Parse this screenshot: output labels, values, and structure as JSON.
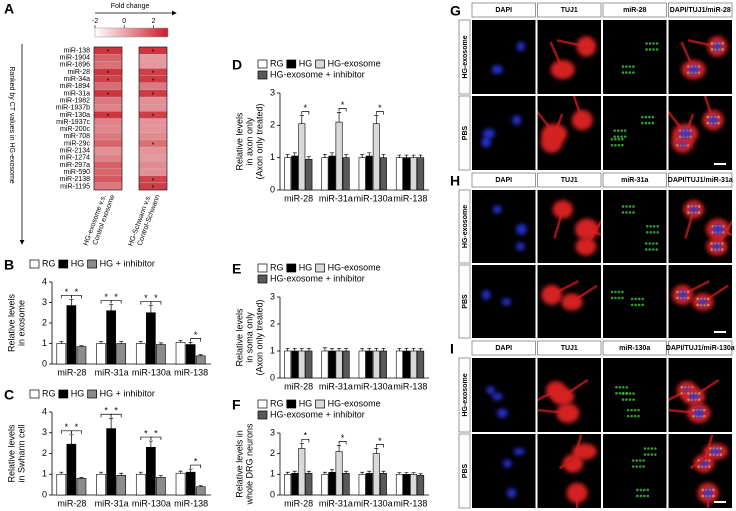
{
  "chart_data": [
    {
      "type": "heatmap",
      "panel": "A",
      "colorbar_label": "Fold change",
      "ylabel": "Ranked by CT values in HG-exosome",
      "categories": [
        "miR-138",
        "miR-1904",
        "miR-1896",
        "miR-28",
        "miR-34a",
        "miR-1894",
        "miR-31a",
        "miR-1982",
        "miR-1937b",
        "miR-130a",
        "miR-1937c",
        "miR-200c",
        "miR-708",
        "miR-29c",
        "miR-2134",
        "miR-1274",
        "miR-297a",
        "miR-590",
        "miR-2138",
        "miR-1195"
      ],
      "xlabels": [
        [
          "HG-exosome v.s.",
          "Control exosome"
        ],
        [
          "HG-Schwann v.s.",
          "Control-Schwann"
        ]
      ],
      "series": [
        {
          "values": [
            2.5,
            1.5,
            1.2,
            2.5,
            2.2,
            1.3,
            2.5,
            1.0,
            0.8,
            2.5,
            0.8,
            0.7,
            1.0,
            1.5,
            0.5,
            0.8,
            1.6,
            1.4,
            1.7,
            1.0
          ],
          "stars": [
            "*",
            null,
            null,
            "*",
            "*",
            null,
            "*",
            null,
            null,
            "*",
            null,
            null,
            null,
            null,
            null,
            null,
            null,
            null,
            null,
            null
          ]
        },
        {
          "values": [
            2.5,
            0.3,
            0.3,
            2.3,
            2.4,
            1.0,
            2.4,
            0.5,
            0.5,
            2.3,
            0.4,
            0.4,
            0.6,
            1.2,
            0.4,
            0.3,
            0.6,
            0.5,
            2.2,
            2.3
          ],
          "stars": [
            "*",
            null,
            null,
            "*",
            "*",
            null,
            "*",
            null,
            null,
            "*",
            null,
            null,
            null,
            "*",
            null,
            null,
            null,
            null,
            "*",
            "*"
          ]
        }
      ],
      "clim": [
        -2,
        3
      ],
      "cticks": [
        -2,
        0,
        2
      ],
      "colors": [
        "#ffffff",
        "#c81e2a"
      ]
    },
    {
      "type": "bar",
      "panel": "B",
      "ylabel": [
        "Relative levels",
        "in exosome"
      ],
      "categories": [
        "miR-28",
        "miR-31a",
        "miR-130a",
        "miR-138"
      ],
      "ylim": [
        0,
        4
      ],
      "yticks": [
        0,
        1,
        2,
        3,
        4
      ],
      "series": [
        {
          "name": "RG",
          "color": "#ffffff",
          "values": [
            1.0,
            1.0,
            1.0,
            1.05
          ],
          "errors": [
            0.1,
            0.1,
            0.1,
            0.1
          ]
        },
        {
          "name": "HG",
          "color": "#000000",
          "values": [
            2.85,
            2.6,
            2.5,
            0.95
          ],
          "errors": [
            0.3,
            0.3,
            0.35,
            0.1
          ]
        },
        {
          "name": "HG + inhibitor",
          "color": "#8c8c8c",
          "values": [
            0.85,
            1.0,
            0.95,
            0.4
          ],
          "errors": [
            0.05,
            0.1,
            0.08,
            0.05
          ]
        }
      ],
      "annotations": [
        {
          "text": "*",
          "category": "miR-28",
          "between": [
            "RG",
            "HG"
          ]
        },
        {
          "text": "*",
          "category": "miR-28",
          "between": [
            "HG",
            "HG + inhibitor"
          ]
        },
        {
          "text": "*",
          "category": "miR-31a",
          "between": [
            "RG",
            "HG"
          ]
        },
        {
          "text": "*",
          "category": "miR-31a",
          "between": [
            "HG",
            "HG + inhibitor"
          ]
        },
        {
          "text": "*",
          "category": "miR-130a",
          "between": [
            "RG",
            "HG"
          ]
        },
        {
          "text": "*",
          "category": "miR-130a",
          "between": [
            "HG",
            "HG + inhibitor"
          ]
        },
        {
          "text": "*",
          "category": "miR-138",
          "between": [
            "HG",
            "HG + inhibitor"
          ]
        }
      ]
    },
    {
      "type": "bar",
      "panel": "C",
      "ylabel": [
        "Relative levels",
        "in Swhann cell"
      ],
      "categories": [
        "miR-28",
        "miR-31a",
        "miR-130a",
        "miR-138"
      ],
      "ylim": [
        0,
        4
      ],
      "yticks": [
        0,
        1,
        2,
        3,
        4
      ],
      "series": [
        {
          "name": "RG",
          "color": "#ffffff",
          "values": [
            1.0,
            1.0,
            1.0,
            1.05
          ],
          "errors": [
            0.1,
            0.1,
            0.1,
            0.1
          ]
        },
        {
          "name": "HG",
          "color": "#000000",
          "values": [
            2.45,
            3.2,
            2.3,
            1.1
          ],
          "errors": [
            0.45,
            0.5,
            0.3,
            0.15
          ]
        },
        {
          "name": "HG + inhibitor",
          "color": "#8c8c8c",
          "values": [
            0.8,
            0.95,
            0.85,
            0.4
          ],
          "errors": [
            0.05,
            0.1,
            0.08,
            0.05
          ]
        }
      ],
      "annotations": [
        {
          "text": "*",
          "category": "miR-28",
          "between": [
            "RG",
            "HG"
          ]
        },
        {
          "text": "*",
          "category": "miR-28",
          "between": [
            "HG",
            "HG + inhibitor"
          ]
        },
        {
          "text": "*",
          "category": "miR-31a",
          "between": [
            "RG",
            "HG"
          ]
        },
        {
          "text": "*",
          "category": "miR-31a",
          "between": [
            "HG",
            "HG + inhibitor"
          ]
        },
        {
          "text": "*",
          "category": "miR-130a",
          "between": [
            "RG",
            "HG"
          ]
        },
        {
          "text": "*",
          "category": "miR-130a",
          "between": [
            "HG",
            "HG + inhibitor"
          ]
        },
        {
          "text": "*",
          "category": "miR-138",
          "between": [
            "HG",
            "HG + inhibitor"
          ]
        }
      ]
    },
    {
      "type": "bar",
      "panel": "D",
      "ylabel": [
        "Relative levels",
        "in axon only",
        "(Axon only treated)"
      ],
      "categories": [
        "miR-28",
        "miR-31a",
        "miR-130a",
        "miR-138"
      ],
      "ylim": [
        0,
        3
      ],
      "yticks": [
        0,
        1,
        2,
        3
      ],
      "series": [
        {
          "name": "RG",
          "color": "#ffffff",
          "values": [
            1.0,
            1.0,
            1.0,
            1.0
          ],
          "errors": [
            0.1,
            0.1,
            0.1,
            0.08
          ]
        },
        {
          "name": "HG",
          "color": "#000000",
          "values": [
            1.05,
            1.05,
            1.05,
            1.0
          ],
          "errors": [
            0.1,
            0.1,
            0.1,
            0.08
          ]
        },
        {
          "name": "HG-exosome",
          "color": "#d9d9d9",
          "values": [
            2.05,
            2.1,
            2.05,
            1.0
          ],
          "errors": [
            0.25,
            0.3,
            0.25,
            0.08
          ]
        },
        {
          "name": "HG-exosome + inhibitor",
          "color": "#595959",
          "values": [
            0.95,
            1.0,
            1.0,
            1.0
          ],
          "errors": [
            0.08,
            0.1,
            0.1,
            0.08
          ]
        }
      ],
      "annotations": [
        {
          "text": "*",
          "category": "miR-28",
          "between": [
            "HG-exosome",
            "HG-exosome + inhibitor"
          ]
        },
        {
          "text": "*",
          "category": "miR-31a",
          "between": [
            "HG-exosome",
            "HG-exosome + inhibitor"
          ]
        },
        {
          "text": "*",
          "category": "miR-130a",
          "between": [
            "HG-exosome",
            "HG-exosome + inhibitor"
          ]
        }
      ]
    },
    {
      "type": "bar",
      "panel": "E",
      "ylabel": [
        "Relative levels",
        "in soma only",
        "(Axon only treated)"
      ],
      "categories": [
        "miR-28",
        "miR-31a",
        "miR-130a",
        "miR-138"
      ],
      "ylim": [
        0,
        3
      ],
      "yticks": [
        0,
        1,
        2,
        3
      ],
      "series": [
        {
          "name": "RG",
          "color": "#ffffff",
          "values": [
            1.0,
            1.0,
            1.0,
            1.0
          ],
          "errors": [
            0.1,
            0.12,
            0.1,
            0.1
          ]
        },
        {
          "name": "HG",
          "color": "#000000",
          "values": [
            1.0,
            1.0,
            1.0,
            1.0
          ],
          "errors": [
            0.1,
            0.1,
            0.1,
            0.1
          ]
        },
        {
          "name": "HG-exosome",
          "color": "#d9d9d9",
          "values": [
            1.0,
            1.0,
            1.0,
            1.0
          ],
          "errors": [
            0.1,
            0.1,
            0.1,
            0.1
          ]
        },
        {
          "name": "HG-exosome + inhibitor",
          "color": "#595959",
          "values": [
            1.0,
            1.0,
            1.0,
            1.0
          ],
          "errors": [
            0.1,
            0.1,
            0.1,
            0.1
          ]
        }
      ],
      "annotations": []
    },
    {
      "type": "bar",
      "panel": "F",
      "ylabel": [
        "Relative levels in",
        "whole DRG neurons"
      ],
      "categories": [
        "miR-28",
        "miR-31a",
        "miR-130a",
        "miR-138"
      ],
      "ylim": [
        0,
        3
      ],
      "yticks": [
        0,
        1,
        2,
        3
      ],
      "series": [
        {
          "name": "RG",
          "color": "#ffffff",
          "values": [
            1.0,
            1.0,
            1.0,
            1.0
          ],
          "errors": [
            0.1,
            0.1,
            0.1,
            0.08
          ]
        },
        {
          "name": "HG",
          "color": "#000000",
          "values": [
            1.05,
            1.1,
            1.05,
            1.0
          ],
          "errors": [
            0.1,
            0.12,
            0.1,
            0.08
          ]
        },
        {
          "name": "HG-exosome",
          "color": "#d9d9d9",
          "values": [
            2.25,
            2.1,
            2.0,
            1.0
          ],
          "errors": [
            0.25,
            0.3,
            0.25,
            0.08
          ]
        },
        {
          "name": "HG-exosome + inhibitor",
          "color": "#595959",
          "values": [
            1.05,
            1.05,
            1.05,
            0.95
          ],
          "errors": [
            0.1,
            0.1,
            0.1,
            0.08
          ]
        }
      ],
      "annotations": [
        {
          "text": "*",
          "category": "miR-28",
          "between": [
            "HG-exosome",
            "HG-exosome + inhibitor"
          ]
        },
        {
          "text": "*",
          "category": "miR-31a",
          "between": [
            "HG-exosome",
            "HG-exosome + inhibitor"
          ]
        },
        {
          "text": "*",
          "category": "miR-130a",
          "between": [
            "HG-exosome",
            "HG-exosome + inhibitor"
          ]
        }
      ]
    }
  ],
  "image_panels": [
    {
      "panel": "G",
      "columns": [
        "DAPI",
        "TUJ1",
        "miR-28",
        "DAPI/TUJ1/miR-28"
      ],
      "rows": [
        "HG-exosome",
        "PBS"
      ]
    },
    {
      "panel": "H",
      "columns": [
        "DAPI",
        "TUJ1",
        "miR-31a",
        "DAPI/TUJ1/miR-31a"
      ],
      "rows": [
        "HG-exosome",
        "PBS"
      ]
    },
    {
      "panel": "I",
      "columns": [
        "DAPI",
        "TUJ1",
        "miR-130a",
        "DAPI/TUJ1/miR-130a"
      ],
      "rows": [
        "HG-exosome",
        "PBS"
      ]
    }
  ]
}
